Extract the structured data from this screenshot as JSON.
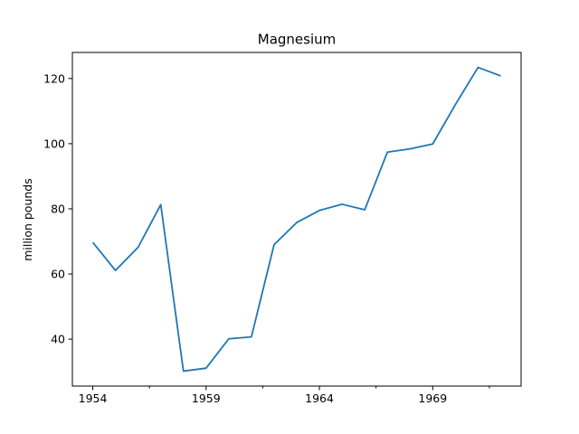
{
  "chart_data": {
    "type": "line",
    "title": "Magnesium",
    "xlabel": "",
    "ylabel": "million pounds",
    "x": [
      1954,
      1955,
      1956,
      1957,
      1958,
      1959,
      1960,
      1961,
      1962,
      1963,
      1964,
      1965,
      1966,
      1967,
      1968,
      1969,
      1970,
      1971,
      1972
    ],
    "series": [
      {
        "color": "#1f77b4",
        "values": [
          69.7,
          61.1,
          68.2,
          81.3,
          30.2,
          31.1,
          40.1,
          40.7,
          69.0,
          75.8,
          79.5,
          81.4,
          79.7,
          97.4,
          98.4,
          99.9,
          112.0,
          123.4,
          120.8
        ]
      }
    ],
    "xlim": [
      1953.1,
      1972.9
    ],
    "ylim": [
      25.6,
      128.0
    ],
    "x_major_ticks": [
      1954,
      1959,
      1964,
      1969
    ],
    "x_minor_ticks": [
      1956.5,
      1961.5,
      1966.5,
      1971.5
    ],
    "y_ticks": [
      40,
      60,
      80,
      100,
      120
    ],
    "grid": false,
    "legend": false
  }
}
